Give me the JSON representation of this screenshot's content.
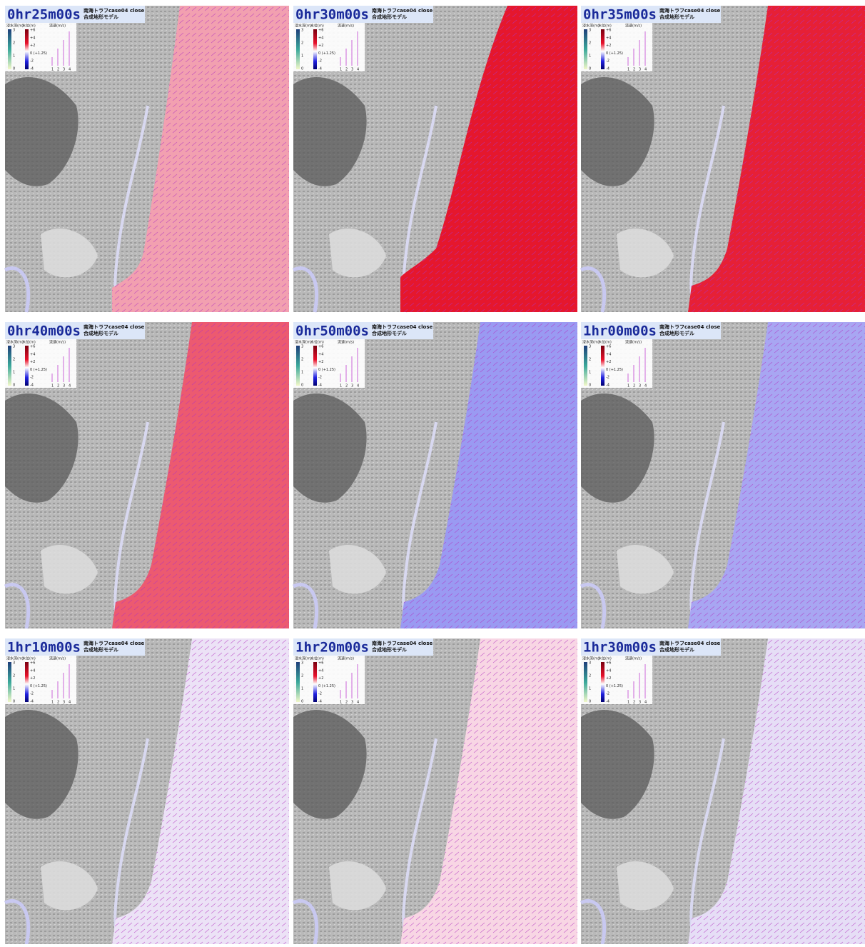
{
  "header": {
    "title": "南海トラフcase04 close",
    "subtitle": "合成地形モデル"
  },
  "legend": {
    "depth_label": "浸水深(m)",
    "level_label": "水位(m)",
    "speed_label": "流速(m/s)",
    "depth_ticks": [
      "3",
      "2",
      "1",
      "0"
    ],
    "level_ticks": [
      "+6",
      "+4",
      "+2",
      "0 (+1.25)",
      "-2",
      "-4"
    ],
    "speed_ticks": [
      "1",
      "2",
      "3",
      "4"
    ]
  },
  "panels": [
    {
      "time": "0hr25m00s",
      "sea_color": "#f2a0b0"
    },
    {
      "time": "0hr30m00s",
      "sea_color": "#e5172d"
    },
    {
      "time": "0hr35m00s",
      "sea_color": "#e62036"
    },
    {
      "time": "0hr40m00s",
      "sea_color": "#ec5a70"
    },
    {
      "time": "0hr50m00s",
      "sea_color": "#9a9af2"
    },
    {
      "time": "1hr00m00s",
      "sea_color": "#a8a6f2"
    },
    {
      "time": "1hr10m00s",
      "sea_color": "#ece2f6"
    },
    {
      "time": "1hr20m00s",
      "sea_color": "#f8d6e4"
    },
    {
      "time": "1hr30m00s",
      "sea_color": "#e6def6"
    }
  ]
}
